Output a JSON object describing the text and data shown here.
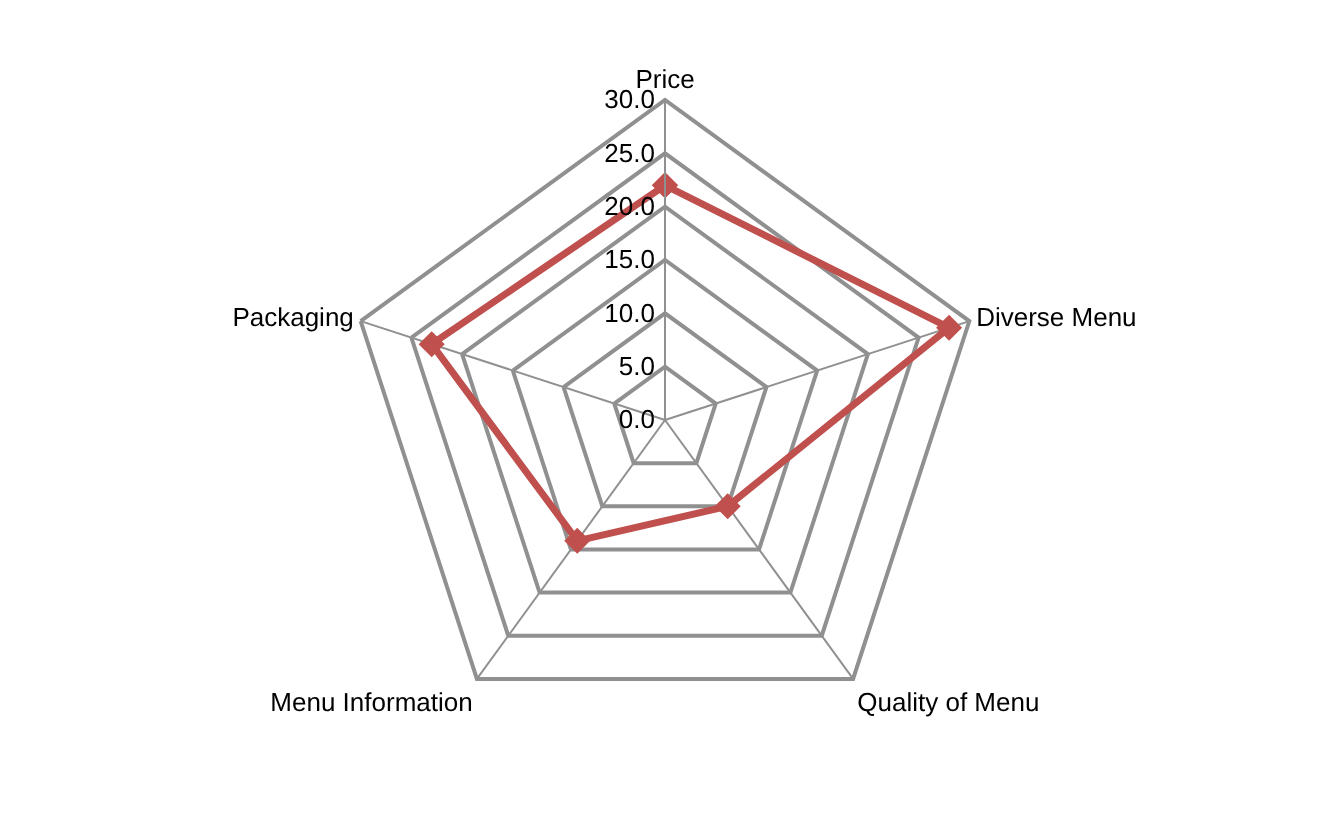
{
  "chart_data": {
    "type": "radar",
    "categories": [
      "Price",
      "Diverse Menu",
      "Quality of Menu",
      "Menu Information",
      "Packaging"
    ],
    "series": [
      {
        "color": "#c0504d",
        "values": [
          22,
          28,
          10,
          14,
          23
        ]
      }
    ],
    "ylim": [
      0,
      30
    ],
    "yticks": [
      {
        "value": 0,
        "label": "0.0"
      },
      {
        "value": 5,
        "label": "5.0"
      },
      {
        "value": 10,
        "label": "10.0"
      },
      {
        "value": 15,
        "label": "15.0"
      },
      {
        "value": 20,
        "label": "20.0"
      },
      {
        "value": 25,
        "label": "25.0"
      },
      {
        "value": 30,
        "label": "30.0"
      }
    ],
    "marker": "diamond",
    "line_style": "solid",
    "grid": true
  }
}
